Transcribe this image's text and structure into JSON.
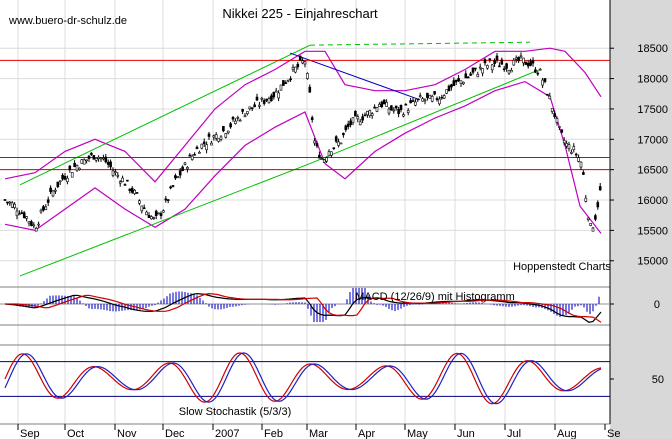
{
  "header": {
    "website": "www.buero-dr-schulz.de",
    "title": "Nikkei 225 - Einjahreschart"
  },
  "chart_data": [
    {
      "type": "candlestick",
      "title": "Nikkei 225 - Einjahreschart",
      "watermark": "Hoppenstedt Charts",
      "ylim": [
        14650,
        18800
      ],
      "yticks": [
        15000,
        15500,
        16000,
        16500,
        17000,
        17500,
        18000,
        18500
      ],
      "ytick_labels": [
        "15000",
        "15500",
        "16000",
        "16500",
        "17000",
        "17500",
        "18000",
        "18500"
      ],
      "xlabels": [
        "Sep",
        "Oct",
        "Nov",
        "Dec",
        "2007",
        "Feb",
        "Mar",
        "Apr",
        "May",
        "Jun",
        "Jul",
        "Aug",
        "Se"
      ],
      "grid": true,
      "price_path": [
        [
          0,
          16000
        ],
        [
          10,
          15900
        ],
        [
          20,
          15750
        ],
        [
          30,
          15550
        ],
        [
          40,
          15900
        ],
        [
          50,
          16200
        ],
        [
          60,
          16400
        ],
        [
          70,
          16550
        ],
        [
          80,
          16650
        ],
        [
          90,
          16750
        ],
        [
          100,
          16650
        ],
        [
          110,
          16450
        ],
        [
          120,
          16300
        ],
        [
          130,
          16100
        ],
        [
          140,
          15850
        ],
        [
          150,
          15650
        ],
        [
          160,
          15900
        ],
        [
          170,
          16300
        ],
        [
          180,
          16550
        ],
        [
          190,
          16800
        ],
        [
          200,
          16950
        ],
        [
          210,
          17050
        ],
        [
          220,
          17150
        ],
        [
          230,
          17300
        ],
        [
          240,
          17450
        ],
        [
          250,
          17550
        ],
        [
          260,
          17650
        ],
        [
          270,
          17750
        ],
        [
          280,
          17950
        ],
        [
          290,
          18150
        ],
        [
          300,
          18300
        ],
        [
          305,
          17700
        ],
        [
          310,
          16900
        ],
        [
          318,
          16650
        ],
        [
          325,
          16850
        ],
        [
          335,
          16950
        ],
        [
          345,
          17250
        ],
        [
          355,
          17350
        ],
        [
          365,
          17450
        ],
        [
          375,
          17600
        ],
        [
          385,
          17500
        ],
        [
          395,
          17450
        ],
        [
          405,
          17550
        ],
        [
          415,
          17650
        ],
        [
          425,
          17650
        ],
        [
          435,
          17700
        ],
        [
          445,
          17850
        ],
        [
          455,
          17950
        ],
        [
          465,
          18050
        ],
        [
          475,
          18150
        ],
        [
          485,
          18250
        ],
        [
          495,
          18250
        ],
        [
          505,
          18200
        ],
        [
          515,
          18300
        ],
        [
          525,
          18250
        ],
        [
          535,
          18100
        ],
        [
          542,
          17800
        ],
        [
          548,
          17500
        ],
        [
          555,
          17100
        ],
        [
          562,
          16900
        ],
        [
          570,
          16800
        ],
        [
          577,
          16600
        ],
        [
          582,
          15900
        ],
        [
          586,
          15500
        ],
        [
          590,
          15700
        ],
        [
          596,
          16200
        ]
      ],
      "bollinger_upper": [
        [
          0,
          16350
        ],
        [
          30,
          16450
        ],
        [
          60,
          16800
        ],
        [
          90,
          17000
        ],
        [
          120,
          16800
        ],
        [
          150,
          16300
        ],
        [
          180,
          16900
        ],
        [
          210,
          17500
        ],
        [
          240,
          17900
        ],
        [
          270,
          18150
        ],
        [
          300,
          18450
        ],
        [
          320,
          18450
        ],
        [
          340,
          17900
        ],
        [
          370,
          17800
        ],
        [
          400,
          17800
        ],
        [
          430,
          17900
        ],
        [
          460,
          18150
        ],
        [
          490,
          18450
        ],
        [
          520,
          18450
        ],
        [
          545,
          18500
        ],
        [
          560,
          18450
        ],
        [
          580,
          18100
        ],
        [
          596,
          17700
        ]
      ],
      "bollinger_lower": [
        [
          0,
          15600
        ],
        [
          30,
          15500
        ],
        [
          60,
          15850
        ],
        [
          90,
          16200
        ],
        [
          120,
          15850
        ],
        [
          150,
          15550
        ],
        [
          180,
          15850
        ],
        [
          210,
          16400
        ],
        [
          240,
          16900
        ],
        [
          270,
          17200
        ],
        [
          300,
          17450
        ],
        [
          320,
          16600
        ],
        [
          340,
          16350
        ],
        [
          370,
          16800
        ],
        [
          400,
          17100
        ],
        [
          430,
          17350
        ],
        [
          460,
          17550
        ],
        [
          490,
          17800
        ],
        [
          520,
          17950
        ],
        [
          545,
          17700
        ],
        [
          560,
          16900
        ],
        [
          575,
          15900
        ],
        [
          596,
          15450
        ]
      ],
      "horizontal_levels": [
        18300,
        16700,
        16500
      ],
      "upper_channel": [
        [
          15,
          16250
        ],
        [
          305,
          18550
        ]
      ],
      "upper_channel_dashed": [
        [
          305,
          18550
        ],
        [
          525,
          18600
        ]
      ],
      "lower_channel": [
        [
          15,
          14750
        ],
        [
          305,
          16600
        ],
        [
          535,
          18150
        ]
      ],
      "down_trendline": [
        [
          285,
          18420
        ],
        [
          415,
          17650
        ]
      ]
    },
    {
      "type": "line",
      "title": "MACD (12/26/9) mit Histogramm",
      "yticks": [
        0
      ],
      "ytick_labels": [
        "0"
      ]
    },
    {
      "type": "line",
      "title": "Slow Stochastik (5/3/3)",
      "ylim": [
        0,
        100
      ],
      "yticks": [
        50
      ],
      "ytick_labels": [
        "50"
      ],
      "levels": [
        80,
        20
      ]
    }
  ]
}
